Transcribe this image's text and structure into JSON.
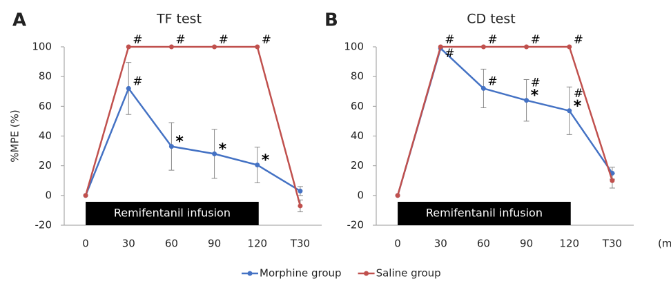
{
  "chart_data": [
    {
      "type": "line",
      "panel": "A",
      "title": "TF test",
      "ylabel": "%MPE (%)",
      "categories": [
        "0",
        "30",
        "60",
        "90",
        "120",
        "T30"
      ],
      "ylim": [
        -20,
        100
      ],
      "yticks": [
        -20,
        0,
        20,
        40,
        60,
        80,
        100
      ],
      "span_label": "Remifentanil infusion",
      "series": [
        {
          "name": "Morphine group",
          "color": "#4472c4",
          "values": [
            0,
            72,
            33,
            28,
            20.5,
            3
          ],
          "errors": [
            null,
            17.5,
            16,
            16.5,
            12,
            3
          ],
          "annotations": [
            null,
            [
              "#"
            ],
            [
              "*"
            ],
            [
              "*"
            ],
            [
              "*"
            ],
            null
          ]
        },
        {
          "name": "Saline group",
          "color": "#c0504d",
          "values": [
            0,
            100,
            100,
            100,
            100,
            -7
          ],
          "errors": [
            null,
            null,
            null,
            null,
            null,
            4
          ],
          "annotations": [
            null,
            [
              "#"
            ],
            [
              "#"
            ],
            [
              "#"
            ],
            [
              "#"
            ],
            null
          ]
        }
      ]
    },
    {
      "type": "line",
      "panel": "B",
      "title": "CD test",
      "xlabel": "(min)",
      "categories": [
        "0",
        "30",
        "60",
        "90",
        "120",
        "T30"
      ],
      "ylim": [
        -20,
        100
      ],
      "yticks": [
        -20,
        0,
        20,
        40,
        60,
        80,
        100
      ],
      "span_label": "Remifentanil infusion",
      "series": [
        {
          "name": "Morphine group",
          "color": "#4472c4",
          "values": [
            0,
            99,
            72,
            64,
            57,
            15
          ],
          "errors": [
            null,
            null,
            13,
            14,
            16,
            4
          ],
          "annotations": [
            null,
            [
              "#"
            ],
            [
              "#"
            ],
            [
              "#",
              "*"
            ],
            [
              "#",
              "*"
            ],
            null
          ]
        },
        {
          "name": "Saline group",
          "color": "#c0504d",
          "values": [
            0,
            100,
            100,
            100,
            100,
            10
          ],
          "errors": [
            null,
            null,
            null,
            null,
            null,
            5
          ],
          "annotations": [
            null,
            [
              "#"
            ],
            [
              "#"
            ],
            [
              "#"
            ],
            [
              "#"
            ],
            null
          ]
        }
      ]
    }
  ],
  "legend": "bottom"
}
